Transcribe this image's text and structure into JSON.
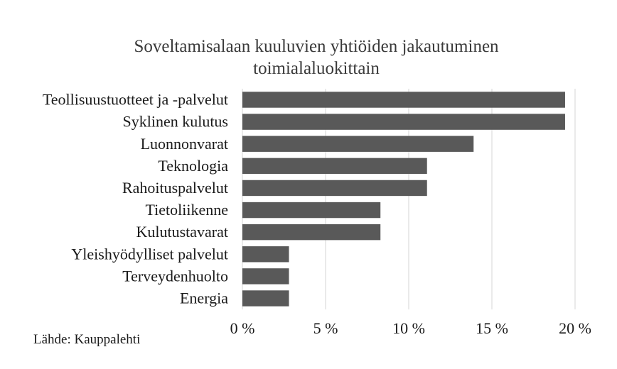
{
  "chart_data": {
    "type": "bar",
    "orientation": "horizontal",
    "title_lines": [
      "Soveltamisalaan kuuluvien yhtiöiden jakautuminen",
      "toimialaluokittain"
    ],
    "categories": [
      "Teollisuustuotteet ja -palvelut",
      "Syklinen kulutus",
      "Luonnonvarat",
      "Teknologia",
      "Rahoituspalvelut",
      "Tietoliikenne",
      "Kulutustavarat",
      "Yleishyödylliset palvelut",
      "Terveydenhuolto",
      "Energia"
    ],
    "values": [
      19.4,
      19.4,
      13.9,
      11.1,
      11.1,
      8.3,
      8.3,
      2.8,
      2.8,
      2.8
    ],
    "xlim": [
      0,
      20
    ],
    "ticks": [
      0,
      5,
      10,
      15,
      20
    ],
    "tick_labels": [
      "0 %",
      "5 %",
      "10 %",
      "15 %",
      "20 %"
    ],
    "grid": "vertical",
    "bar_color": "#595959"
  },
  "source": "Lähde: Kauppalehti"
}
